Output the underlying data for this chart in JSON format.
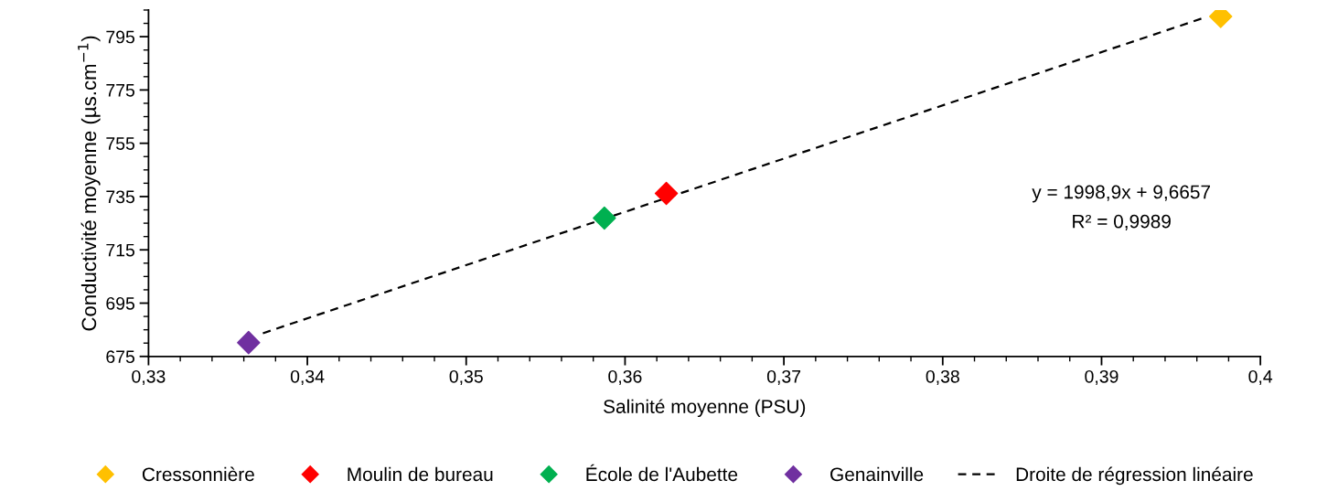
{
  "chart_data": {
    "type": "scatter",
    "xlabel": "Salinité moyenne (PSU)",
    "ylabel": "Conductivité moyenne (µs.cm$^{−1}$)",
    "marker": "diamond",
    "grid": false,
    "legend": "bottom",
    "xlim": [
      0.33,
      0.4
    ],
    "ylim": [
      675,
      805
    ],
    "xticks": [
      {
        "value": 0.33,
        "label": "0,33"
      },
      {
        "value": 0.34,
        "label": "0,34"
      },
      {
        "value": 0.35,
        "label": "0,35"
      },
      {
        "value": 0.36,
        "label": "0,36"
      },
      {
        "value": 0.37,
        "label": "0,37"
      },
      {
        "value": 0.38,
        "label": "0,38"
      },
      {
        "value": 0.39,
        "label": "0,39"
      },
      {
        "value": 0.4,
        "label": "0,4"
      }
    ],
    "yticks": [
      675,
      695,
      715,
      735,
      755,
      775,
      795
    ],
    "series": [
      {
        "name": "Cressonnière",
        "color": "#ffc000",
        "x": [
          0.3975
        ],
        "values": [
          802.6
        ]
      },
      {
        "name": "Moulin de bureau",
        "color": "#ff0000",
        "x": [
          0.3626
        ],
        "values": [
          736.2
        ]
      },
      {
        "name": "École de l'Aubette",
        "color": "#00b050",
        "x": [
          0.3587
        ],
        "values": [
          726.9
        ]
      },
      {
        "name": "Genainville",
        "color": "#7030a0",
        "x": [
          0.3363
        ],
        "values": [
          680.2
        ]
      },
      {
        "name": "Droite de régression linéaire",
        "type": "line",
        "color": "#000000",
        "line_style": "dashed",
        "marker": "none",
        "x": [
          0.3372,
          0.3963
        ],
        "values": [
          683.7,
          801.8
        ]
      }
    ],
    "annotations": [
      "y = 1998,9x + 9,6657",
      "R² = 0,9989"
    ]
  }
}
